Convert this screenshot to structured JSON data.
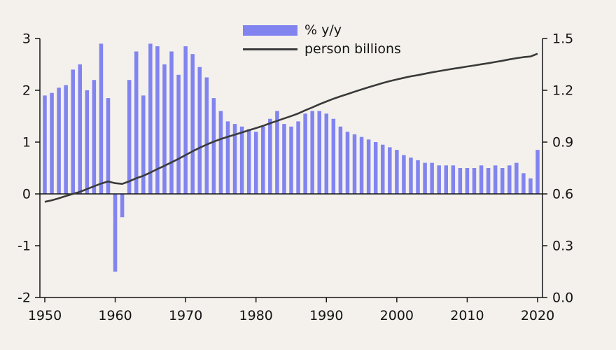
{
  "chart_data": {
    "type": "bar",
    "description": "Annual population growth (% y/y, bars, left axis) and population level (person billions, line, right axis), 1950-2020",
    "x": [
      1950,
      1951,
      1952,
      1953,
      1954,
      1955,
      1956,
      1957,
      1958,
      1959,
      1960,
      1961,
      1962,
      1963,
      1964,
      1965,
      1966,
      1967,
      1968,
      1969,
      1970,
      1971,
      1972,
      1973,
      1974,
      1975,
      1976,
      1977,
      1978,
      1979,
      1980,
      1981,
      1982,
      1983,
      1984,
      1985,
      1986,
      1987,
      1988,
      1989,
      1990,
      1991,
      1992,
      1993,
      1994,
      1995,
      1996,
      1997,
      1998,
      1999,
      2000,
      2001,
      2002,
      2003,
      2004,
      2005,
      2006,
      2007,
      2008,
      2009,
      2010,
      2011,
      2012,
      2013,
      2014,
      2015,
      2016,
      2017,
      2018,
      2019,
      2020
    ],
    "series": [
      {
        "name": "% y/y",
        "type": "bar",
        "axis": "left",
        "color": "#8184ef",
        "values": [
          1.9,
          1.95,
          2.05,
          2.1,
          2.4,
          2.5,
          2.0,
          2.2,
          2.9,
          1.85,
          -1.5,
          -0.45,
          2.2,
          2.75,
          1.9,
          2.9,
          2.85,
          2.5,
          2.75,
          2.3,
          2.85,
          2.7,
          2.45,
          2.25,
          1.85,
          1.6,
          1.4,
          1.35,
          1.3,
          1.25,
          1.2,
          1.3,
          1.45,
          1.6,
          1.35,
          1.3,
          1.4,
          1.55,
          1.6,
          1.6,
          1.55,
          1.45,
          1.3,
          1.2,
          1.15,
          1.1,
          1.05,
          1.0,
          0.95,
          0.9,
          0.85,
          0.75,
          0.7,
          0.65,
          0.6,
          0.6,
          0.55,
          0.55,
          0.55,
          0.5,
          0.5,
          0.5,
          0.55,
          0.5,
          0.55,
          0.5,
          0.55,
          0.6,
          0.4,
          0.3,
          0.85
        ]
      },
      {
        "name": "person billions",
        "type": "line",
        "axis": "right",
        "color": "#3a3a3a",
        "values": [
          0.554,
          0.563,
          0.575,
          0.588,
          0.6,
          0.612,
          0.628,
          0.644,
          0.66,
          0.672,
          0.662,
          0.658,
          0.673,
          0.691,
          0.705,
          0.724,
          0.744,
          0.763,
          0.783,
          0.803,
          0.825,
          0.847,
          0.867,
          0.886,
          0.903,
          0.918,
          0.931,
          0.943,
          0.956,
          0.969,
          0.981,
          0.994,
          1.009,
          1.023,
          1.037,
          1.051,
          1.066,
          1.084,
          1.101,
          1.119,
          1.135,
          1.151,
          1.165,
          1.178,
          1.192,
          1.205,
          1.218,
          1.23,
          1.242,
          1.253,
          1.263,
          1.272,
          1.281,
          1.288,
          1.296,
          1.304,
          1.311,
          1.318,
          1.325,
          1.331,
          1.338,
          1.344,
          1.351,
          1.357,
          1.364,
          1.371,
          1.379,
          1.386,
          1.392,
          1.396,
          1.412
        ]
      }
    ],
    "left_axis": {
      "range": [
        -2,
        3
      ],
      "tick_values": [
        3,
        2,
        1,
        0,
        -1,
        -2
      ],
      "tick_labels": [
        "3",
        "2",
        "1",
        "0",
        "-1",
        "-2"
      ]
    },
    "right_axis": {
      "range": [
        0,
        1.5
      ],
      "tick_values": [
        1.5,
        1.2,
        0.9,
        0.6,
        0.3,
        0.0
      ],
      "tick_labels": [
        "1.5",
        "1.2",
        "0.9",
        "0.6",
        "0.3",
        "0.0"
      ]
    },
    "x_axis": {
      "range": [
        1950,
        2020
      ],
      "tick_values": [
        1950,
        1960,
        1970,
        1980,
        1990,
        2000,
        2010,
        2020
      ],
      "tick_labels": [
        "1950",
        "1960",
        "1970",
        "1980",
        "1990",
        "2000",
        "2010",
        "2020"
      ]
    },
    "zero_line": true,
    "grid": false,
    "legend": {
      "position": "top-center",
      "items": [
        {
          "label": "% y/y",
          "marker": "bar-swatch",
          "color": "#8184ef"
        },
        {
          "label": "person billions",
          "marker": "line",
          "color": "#3a3a3a"
        }
      ]
    },
    "colors": {
      "background": "#f4f1ec",
      "axis": "#141414",
      "bar": "#8184ef",
      "line": "#3a3a3a"
    }
  }
}
